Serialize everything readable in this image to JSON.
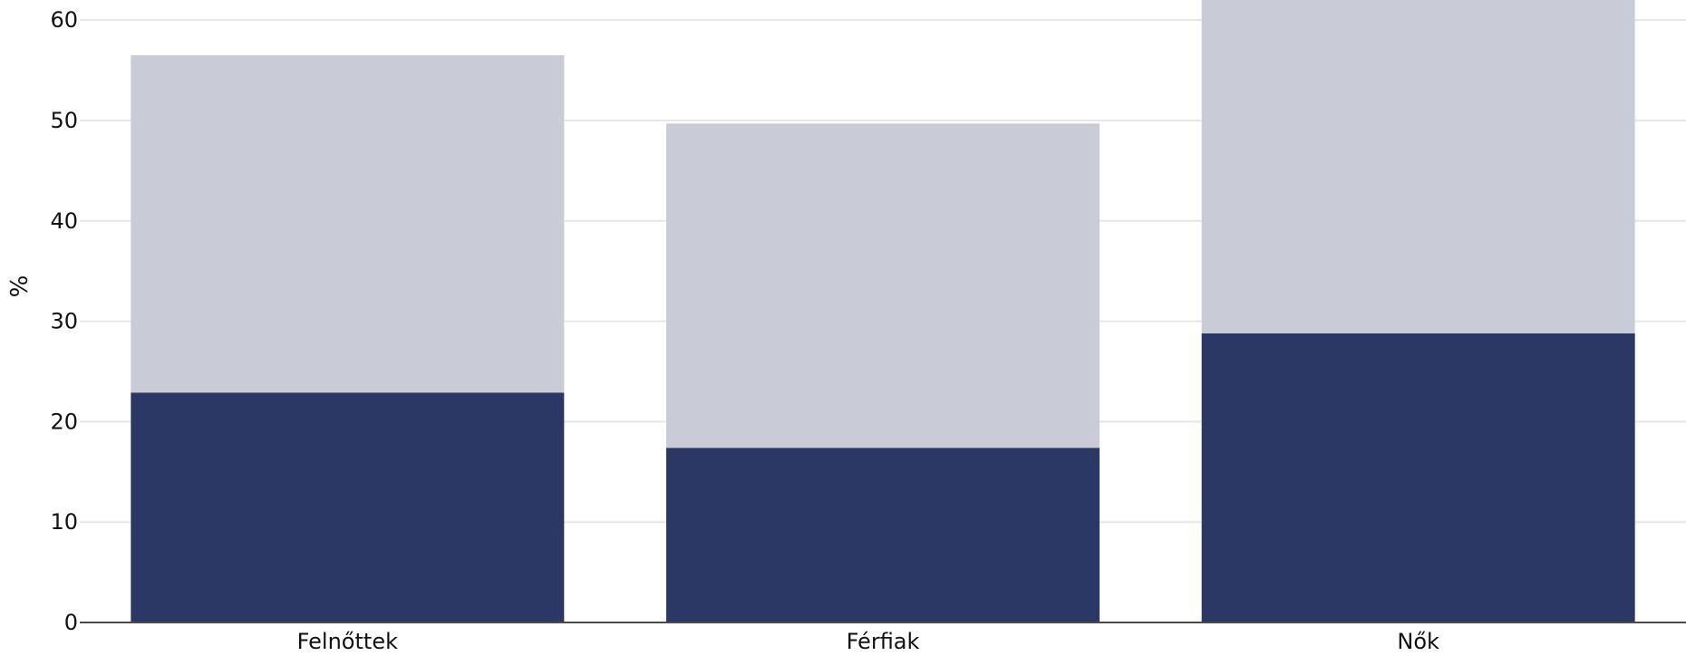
{
  "chart_data": {
    "type": "bar",
    "stacked": true,
    "categories": [
      "Felnőttek",
      "Férfiak",
      "Nők"
    ],
    "series": [
      {
        "values": [
          22.9,
          17.4,
          28.8
        ],
        "color": "#2b3865"
      },
      {
        "values": [
          33.6,
          32.3,
          33.6
        ],
        "color": "#c9ccd7"
      }
    ],
    "ylabel": "%",
    "xlabel": "",
    "title": "",
    "ylim": [
      0,
      62
    ],
    "yticks": [
      0,
      10,
      20,
      30,
      40,
      50,
      60
    ],
    "grid": true,
    "legend": "none"
  }
}
